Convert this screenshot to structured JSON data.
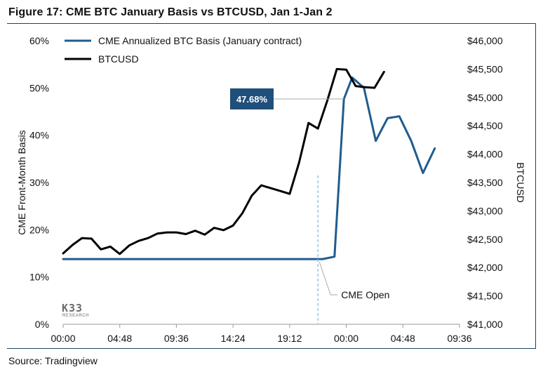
{
  "figure": {
    "title": "Figure 17: CME BTC January Basis vs BTCUSD, Jan 1-Jan 2",
    "source": "Source: Tradingview",
    "logo_text": "K33",
    "logo_subtext": "RESEARCH"
  },
  "chart_data": {
    "type": "line",
    "x_tick_labels": [
      "00:00",
      "04:48",
      "09:36",
      "14:24",
      "19:12",
      "00:00",
      "04:48",
      "09:36"
    ],
    "xlim_hours": [
      0,
      33.6
    ],
    "ylabel_left": "CME Front-Month Basis",
    "ylabel_right": "BTCUSD",
    "left_axis": {
      "ticks": [
        0,
        10,
        20,
        30,
        40,
        50,
        60
      ],
      "tick_labels": [
        "0%",
        "10%",
        "20%",
        "30%",
        "40%",
        "50%",
        "60%"
      ],
      "ylim": [
        0,
        60
      ]
    },
    "right_axis": {
      "ticks": [
        41000,
        41500,
        42000,
        42500,
        43000,
        43500,
        44000,
        44500,
        45000,
        45500,
        46000
      ],
      "tick_labels": [
        "$41,000",
        "$41,500",
        "$42,000",
        "$42,500",
        "$43,000",
        "$43,500",
        "$44,000",
        "$44,500",
        "$45,000",
        "$45,500",
        "$46,000"
      ],
      "ylim": [
        41000,
        46000
      ]
    },
    "legend_position": "top-left",
    "colors": {
      "basis": "#1f5c8f",
      "btc": "#000000",
      "callout_bg": "#1f4f7a",
      "cme_open_line": "#8fc8e8"
    },
    "series": [
      {
        "name": "CME Annualized BTC Basis (January contract)",
        "axis": "left",
        "x": [
          0,
          2,
          4,
          6,
          8,
          10,
          12,
          14,
          16,
          18,
          20,
          22,
          23,
          23.8,
          24.5,
          25.5,
          26.5,
          27.5,
          28.5,
          29.5,
          30.5,
          31.5,
          32.5
        ],
        "y": [
          13.8,
          13.8,
          13.8,
          13.8,
          13.8,
          13.8,
          13.8,
          13.8,
          13.8,
          13.8,
          13.8,
          13.8,
          14.3,
          47.68,
          52.2,
          50.0,
          38.8,
          43.6,
          44.0,
          38.8,
          32.0,
          37.2,
          null
        ]
      },
      {
        "name": "BTCUSD",
        "axis": "right",
        "x": [
          0,
          0.8,
          1.6,
          2.4,
          3.2,
          4.0,
          4.8,
          5.6,
          6.4,
          7.2,
          8.0,
          8.8,
          9.6,
          10.4,
          11.2,
          12.0,
          12.8,
          13.6,
          14.4,
          15.2,
          16.0,
          16.8,
          17.6,
          18.4,
          19.2,
          20.0,
          20.8,
          21.6,
          22.4,
          23.2,
          24.0,
          24.8,
          25.6,
          26.4,
          27.2,
          28.0,
          28.8,
          29.6,
          30.4,
          31.2
        ],
        "y": [
          42250,
          42400,
          42520,
          42510,
          42320,
          42370,
          42240,
          42390,
          42470,
          42520,
          42600,
          42620,
          42620,
          42590,
          42650,
          42580,
          42700,
          42660,
          42740,
          42960,
          43270,
          43450,
          43400,
          43350,
          43300,
          43850,
          44550,
          44450,
          44950,
          45500,
          45490,
          45200,
          45180,
          45170,
          45450,
          null,
          null,
          null,
          null,
          null
        ]
      }
    ],
    "annotations": [
      {
        "text": "47.68%",
        "x": 23.8,
        "y": 47.68,
        "axis": "left"
      },
      {
        "text": "CME Open",
        "x": 21.6
      }
    ]
  }
}
